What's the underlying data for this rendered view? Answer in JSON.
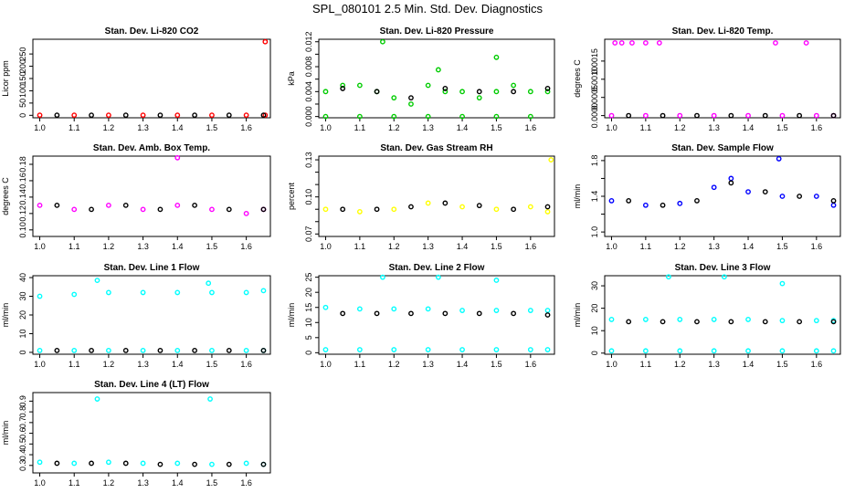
{
  "figure": {
    "title": "SPL_080101 2.5 Min. Std. Dev. Diagnostics"
  },
  "chart_data": [
    {
      "type": "scatter",
      "title": "Stan. Dev. Li-820 CO2",
      "xlabel": "",
      "ylabel": "Licor ppm",
      "xlim": [
        0.98,
        1.67
      ],
      "ylim": [
        -10,
        310
      ],
      "x_ticks": [
        1.0,
        1.1,
        1.2,
        1.3,
        1.4,
        1.5,
        1.6
      ],
      "y_ticks": [
        0,
        50,
        100,
        150,
        200,
        250
      ],
      "color": "#ff0000",
      "series": [
        {
          "x": [
            1.0,
            1.1,
            1.2,
            1.3,
            1.4,
            1.5,
            1.6,
            1.655
          ],
          "y": [
            0.5,
            0.5,
            0.5,
            0.5,
            0.5,
            0.5,
            0.5,
            0.5
          ]
        },
        {
          "x": [
            1.655
          ],
          "y": [
            300
          ]
        }
      ],
      "mean": {
        "x": [
          1.05,
          1.15,
          1.25,
          1.35,
          1.45,
          1.55,
          1.65
        ],
        "y": [
          0.5,
          0.5,
          0.5,
          0.5,
          0.5,
          0.5,
          0.5
        ]
      }
    },
    {
      "type": "scatter",
      "title": "Stan. Dev. Li-820 Pressure",
      "xlabel": "",
      "ylabel": "kPa",
      "xlim": [
        0.98,
        1.67
      ],
      "ylim": [
        -0.0002,
        0.0124
      ],
      "x_ticks": [
        1.0,
        1.1,
        1.2,
        1.3,
        1.4,
        1.5,
        1.6
      ],
      "y_ticks": [
        0.0,
        0.002,
        0.004,
        0.006,
        0.008,
        0.01,
        0.012
      ],
      "y_tick_labels": [
        "0.000",
        "",
        "0.004",
        "",
        "0.008",
        "",
        "0.012"
      ],
      "color": "#00cc00",
      "series": [
        {
          "x": [
            1.0,
            1.05,
            1.1,
            1.15,
            1.2,
            1.25,
            1.3,
            1.35,
            1.4,
            1.45,
            1.5,
            1.55,
            1.6,
            1.65
          ],
          "y": [
            0.004,
            0.005,
            0.005,
            0.004,
            0.003,
            0.002,
            0.005,
            0.004,
            0.004,
            0.003,
            0.004,
            0.005,
            0.004,
            0.004
          ]
        },
        {
          "x": [
            1.0,
            1.1,
            1.2,
            1.3,
            1.4,
            1.5,
            1.6
          ],
          "y": [
            0.0,
            0.0,
            0.0,
            0.0,
            0.0,
            0.0,
            0.0
          ]
        },
        {
          "x": [
            1.167,
            1.33,
            1.5
          ],
          "y": [
            0.012,
            0.0075,
            0.0095
          ]
        }
      ],
      "mean": {
        "x": [
          1.05,
          1.15,
          1.25,
          1.35,
          1.45,
          1.55,
          1.65
        ],
        "y": [
          0.0045,
          0.004,
          0.003,
          0.0045,
          0.004,
          0.004,
          0.0045
        ]
      }
    },
    {
      "type": "scatter",
      "title": "Stan. Dev. Li-820 Temp.",
      "xlabel": "",
      "ylabel": "degrees C",
      "xlim": [
        0.98,
        1.67
      ],
      "ylim": [
        -6e-05,
        0.0021
      ],
      "x_ticks": [
        1.0,
        1.1,
        1.2,
        1.3,
        1.4,
        1.5,
        1.6
      ],
      "y_ticks": [
        0.0,
        0.0005,
        0.001,
        0.0015
      ],
      "y_tick_labels": [
        "0.0000",
        "0.0005",
        "0.0010",
        "0.0015"
      ],
      "color": "#ff00ff",
      "series": [
        {
          "x": [
            1.0,
            1.1,
            1.2,
            1.3,
            1.4,
            1.5,
            1.6,
            1.65
          ],
          "y": [
            0.0,
            0.0,
            0.0,
            0.0,
            0.0,
            0.0,
            0.0,
            0.0
          ]
        },
        {
          "x": [
            1.01,
            1.03,
            1.06,
            1.1,
            1.14,
            1.48,
            1.57
          ],
          "y": [
            0.002,
            0.002,
            0.002,
            0.002,
            0.002,
            0.002,
            0.002
          ]
        }
      ],
      "mean": {
        "x": [
          1.05,
          1.15,
          1.25,
          1.35,
          1.45,
          1.55,
          1.65
        ],
        "y": [
          0.0,
          0.0,
          0.0,
          0.0,
          0.0,
          0.0,
          0.0
        ]
      }
    },
    {
      "type": "scatter",
      "title": "Stan. Dev. Amb. Box Temp.",
      "xlabel": "",
      "ylabel": "degrees C",
      "xlim": [
        0.98,
        1.67
      ],
      "ylim": [
        0.092,
        0.19
      ],
      "x_ticks": [
        1.0,
        1.1,
        1.2,
        1.3,
        1.4,
        1.5,
        1.6
      ],
      "y_ticks": [
        0.1,
        0.12,
        0.14,
        0.16,
        0.18
      ],
      "y_tick_labels": [
        "0.10",
        "0.12",
        "0.14",
        "0.16",
        "0.18"
      ],
      "color": "#ff00ff",
      "series": [
        {
          "x": [
            1.0,
            1.1,
            1.2,
            1.3,
            1.4,
            1.5,
            1.6,
            1.65
          ],
          "y": [
            0.13,
            0.125,
            0.13,
            0.125,
            0.13,
            0.125,
            0.12,
            0.125
          ]
        },
        {
          "x": [
            1.4
          ],
          "y": [
            0.188
          ]
        }
      ],
      "mean": {
        "x": [
          1.05,
          1.15,
          1.25,
          1.35,
          1.45,
          1.55,
          1.65
        ],
        "y": [
          0.13,
          0.125,
          0.13,
          0.125,
          0.13,
          0.125,
          0.125
        ]
      }
    },
    {
      "type": "scatter",
      "title": "Stan. Dev. Gas Stream RH",
      "xlabel": "",
      "ylabel": "percent",
      "xlim": [
        0.98,
        1.67
      ],
      "ylim": [
        0.068,
        0.133
      ],
      "x_ticks": [
        1.0,
        1.1,
        1.2,
        1.3,
        1.4,
        1.5,
        1.6
      ],
      "y_ticks": [
        0.07,
        0.08,
        0.09,
        0.1,
        0.11,
        0.12,
        0.13
      ],
      "y_tick_labels": [
        "0.07",
        "",
        "",
        "0.10",
        "",
        "",
        "0.13"
      ],
      "color": "#ffff00",
      "series": [
        {
          "x": [
            1.0,
            1.1,
            1.2,
            1.3,
            1.4,
            1.5,
            1.6,
            1.65
          ],
          "y": [
            0.09,
            0.088,
            0.09,
            0.095,
            0.092,
            0.09,
            0.092,
            0.088
          ]
        },
        {
          "x": [
            1.66
          ],
          "y": [
            0.13
          ]
        }
      ],
      "mean": {
        "x": [
          1.05,
          1.15,
          1.25,
          1.35,
          1.45,
          1.55,
          1.65
        ],
        "y": [
          0.09,
          0.09,
          0.092,
          0.095,
          0.093,
          0.09,
          0.092
        ]
      }
    },
    {
      "type": "scatter",
      "title": "Stan. Dev. Sample Flow",
      "xlabel": "",
      "ylabel": "ml/min",
      "xlim": [
        0.98,
        1.67
      ],
      "ylim": [
        0.95,
        1.85
      ],
      "x_ticks": [
        1.0,
        1.1,
        1.2,
        1.3,
        1.4,
        1.5,
        1.6
      ],
      "y_ticks": [
        1.0,
        1.2,
        1.4,
        1.6,
        1.8
      ],
      "y_tick_labels": [
        "1.0",
        "",
        "1.4",
        "",
        "1.8"
      ],
      "color": "#0000ff",
      "series": [
        {
          "x": [
            1.0,
            1.1,
            1.2,
            1.3,
            1.35,
            1.4,
            1.5,
            1.6,
            1.65
          ],
          "y": [
            1.35,
            1.3,
            1.32,
            1.5,
            1.6,
            1.45,
            1.4,
            1.4,
            1.3
          ]
        },
        {
          "x": [
            1.49
          ],
          "y": [
            1.82
          ]
        }
      ],
      "mean": {
        "x": [
          1.05,
          1.15,
          1.25,
          1.35,
          1.45,
          1.55,
          1.65
        ],
        "y": [
          1.35,
          1.3,
          1.35,
          1.55,
          1.45,
          1.4,
          1.35
        ]
      }
    },
    {
      "type": "scatter",
      "title": "Stan. Dev. Line 1 Flow",
      "xlabel": "",
      "ylabel": "ml/min",
      "xlim": [
        0.98,
        1.67
      ],
      "ylim": [
        -1,
        41
      ],
      "x_ticks": [
        1.0,
        1.1,
        1.2,
        1.3,
        1.4,
        1.5,
        1.6
      ],
      "y_ticks": [
        0,
        10,
        20,
        30,
        40
      ],
      "color": "#00ffff",
      "series": [
        {
          "x": [
            1.0,
            1.1,
            1.2,
            1.3,
            1.4,
            1.5,
            1.6,
            1.65
          ],
          "y": [
            30,
            31,
            32,
            32,
            32,
            32,
            32,
            33
          ]
        },
        {
          "x": [
            1.0,
            1.1,
            1.2,
            1.3,
            1.4,
            1.5,
            1.6,
            1.65
          ],
          "y": [
            1,
            1,
            1,
            1,
            1,
            1,
            1,
            1
          ]
        },
        {
          "x": [
            1.167,
            1.49
          ],
          "y": [
            38.5,
            37
          ]
        }
      ],
      "mean": {
        "x": [
          1.05,
          1.15,
          1.25,
          1.35,
          1.45,
          1.55,
          1.65
        ],
        "y": [
          1,
          1,
          1,
          1,
          1,
          1,
          1
        ]
      }
    },
    {
      "type": "scatter",
      "title": "Stan. Dev. Line 2 Flow",
      "xlabel": "",
      "ylabel": "ml/min",
      "xlim": [
        0.98,
        1.67
      ],
      "ylim": [
        -0.5,
        25.5
      ],
      "x_ticks": [
        1.0,
        1.1,
        1.2,
        1.3,
        1.4,
        1.5,
        1.6
      ],
      "y_ticks": [
        0,
        5,
        10,
        15,
        20,
        25
      ],
      "color": "#00ffff",
      "series": [
        {
          "x": [
            1.0,
            1.1,
            1.2,
            1.3,
            1.4,
            1.5,
            1.6,
            1.65
          ],
          "y": [
            15,
            14.5,
            14.5,
            14.5,
            14,
            14,
            14,
            14
          ]
        },
        {
          "x": [
            1.0,
            1.1,
            1.2,
            1.3,
            1.4,
            1.5,
            1.6,
            1.65
          ],
          "y": [
            1,
            1,
            1,
            1,
            1,
            1,
            1,
            1
          ]
        },
        {
          "x": [
            1.167,
            1.33,
            1.5
          ],
          "y": [
            25,
            25,
            24
          ]
        }
      ],
      "mean": {
        "x": [
          1.05,
          1.15,
          1.25,
          1.35,
          1.45,
          1.55,
          1.65
        ],
        "y": [
          13,
          13,
          13,
          13,
          13,
          13,
          12.5
        ]
      }
    },
    {
      "type": "scatter",
      "title": "Stan. Dev. Line 3 Flow",
      "xlabel": "",
      "ylabel": "ml/min",
      "xlim": [
        0.98,
        1.67
      ],
      "ylim": [
        -0.5,
        34.5
      ],
      "x_ticks": [
        1.0,
        1.1,
        1.2,
        1.3,
        1.4,
        1.5,
        1.6
      ],
      "y_ticks": [
        0,
        10,
        20,
        30
      ],
      "color": "#00ffff",
      "series": [
        {
          "x": [
            1.0,
            1.1,
            1.2,
            1.3,
            1.4,
            1.5,
            1.6,
            1.65
          ],
          "y": [
            15,
            15,
            15,
            15,
            15,
            14.5,
            14.5,
            14.5
          ]
        },
        {
          "x": [
            1.0,
            1.1,
            1.2,
            1.3,
            1.4,
            1.5,
            1.6,
            1.65
          ],
          "y": [
            1,
            1,
            1,
            1,
            1,
            1,
            1,
            1
          ]
        },
        {
          "x": [
            1.167,
            1.33,
            1.5
          ],
          "y": [
            34,
            34,
            31
          ]
        }
      ],
      "mean": {
        "x": [
          1.05,
          1.15,
          1.25,
          1.35,
          1.45,
          1.55,
          1.65
        ],
        "y": [
          14,
          14,
          14,
          14,
          14,
          14,
          14
        ]
      }
    },
    {
      "type": "scatter",
      "title": "Stan. Dev. Line 4 (LT) Flow",
      "xlabel": "",
      "ylabel": "ml/min",
      "xlim": [
        0.98,
        1.67
      ],
      "ylim": [
        0.23,
        0.98
      ],
      "x_ticks": [
        1.0,
        1.1,
        1.2,
        1.3,
        1.4,
        1.5,
        1.6
      ],
      "y_ticks": [
        0.3,
        0.4,
        0.5,
        0.6,
        0.7,
        0.8,
        0.9
      ],
      "color": "#00ffff",
      "series": [
        {
          "x": [
            1.0,
            1.1,
            1.2,
            1.3,
            1.4,
            1.5,
            1.6,
            1.65
          ],
          "y": [
            0.33,
            0.32,
            0.33,
            0.32,
            0.32,
            0.31,
            0.32,
            0.31
          ]
        },
        {
          "x": [
            1.167,
            1.495
          ],
          "y": [
            0.92,
            0.92
          ]
        }
      ],
      "mean": {
        "x": [
          1.05,
          1.15,
          1.25,
          1.35,
          1.45,
          1.55,
          1.65
        ],
        "y": [
          0.32,
          0.32,
          0.32,
          0.31,
          0.31,
          0.31,
          0.31
        ]
      }
    }
  ]
}
